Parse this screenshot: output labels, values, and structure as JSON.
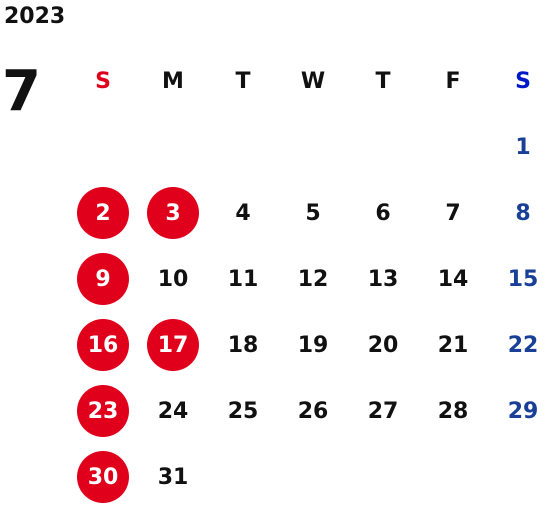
{
  "calendar": {
    "year": "2023",
    "month": "7",
    "weekdays": [
      "S",
      "M",
      "T",
      "W",
      "T",
      "F",
      "S"
    ],
    "weeks": [
      [
        "",
        "",
        "",
        "",
        "",
        "",
        "1"
      ],
      [
        "2",
        "3",
        "4",
        "5",
        "6",
        "7",
        "8"
      ],
      [
        "9",
        "10",
        "11",
        "12",
        "13",
        "14",
        "15"
      ],
      [
        "16",
        "17",
        "18",
        "19",
        "20",
        "21",
        "22"
      ],
      [
        "23",
        "24",
        "25",
        "26",
        "27",
        "28",
        "29"
      ],
      [
        "30",
        "31",
        "",
        "",
        "",
        "",
        ""
      ]
    ],
    "highlighted_days": [
      "2",
      "3",
      "9",
      "16",
      "17",
      "23",
      "30"
    ]
  },
  "colors": {
    "sunday_header": "#e0001c",
    "saturday_header": "#0018c8",
    "saturday_text": "#1a3f96",
    "holiday_circle": "#e0001c",
    "text": "#111111"
  }
}
